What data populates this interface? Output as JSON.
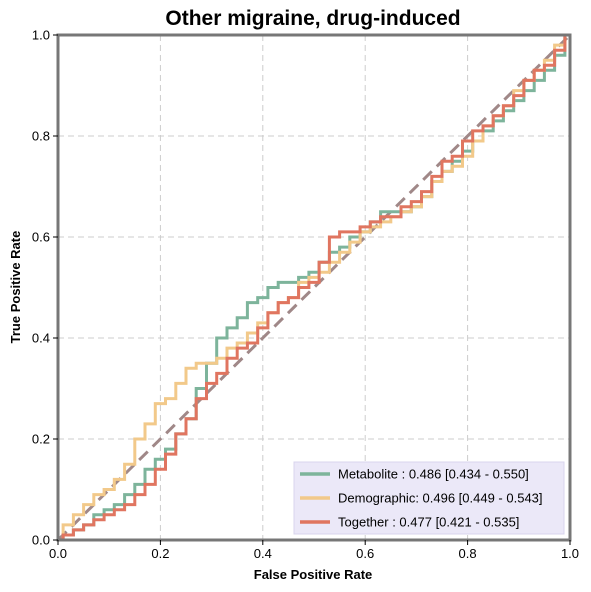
{
  "chart_data": {
    "type": "line",
    "title": "Other migraine, drug-induced",
    "xlabel": "False Positive Rate",
    "ylabel": "True Positive Rate",
    "xlim": [
      0,
      1
    ],
    "ylim": [
      0,
      1
    ],
    "xticks": [
      "0.0",
      "0.2",
      "0.4",
      "0.6",
      "0.8",
      "1.0"
    ],
    "yticks": [
      "0.0",
      "0.2",
      "0.4",
      "0.6",
      "0.8",
      "1.0"
    ],
    "grid": true,
    "legend_position": "bottom-right",
    "diagonal": {
      "x": [
        0,
        1
      ],
      "y": [
        0,
        1
      ],
      "color": "#a08888",
      "style": "dashed"
    },
    "series": [
      {
        "name": "Metabolite",
        "legend_label": "Metabolite     : 0.486 [0.434 - 0.550]",
        "color": "#7db49b",
        "x": [
          0,
          0.02,
          0.04,
          0.06,
          0.08,
          0.1,
          0.12,
          0.14,
          0.16,
          0.18,
          0.2,
          0.22,
          0.24,
          0.26,
          0.28,
          0.3,
          0.32,
          0.34,
          0.36,
          0.38,
          0.4,
          0.42,
          0.44,
          0.46,
          0.48,
          0.5,
          0.52,
          0.54,
          0.56,
          0.58,
          0.6,
          0.62,
          0.64,
          0.66,
          0.68,
          0.7,
          0.72,
          0.74,
          0.76,
          0.78,
          0.8,
          0.82,
          0.84,
          0.86,
          0.88,
          0.9,
          0.92,
          0.94,
          0.96,
          0.98,
          1.0
        ],
        "y": [
          0,
          0.01,
          0.02,
          0.03,
          0.05,
          0.06,
          0.07,
          0.09,
          0.11,
          0.14,
          0.16,
          0.18,
          0.21,
          0.24,
          0.3,
          0.35,
          0.4,
          0.42,
          0.44,
          0.47,
          0.48,
          0.5,
          0.51,
          0.51,
          0.52,
          0.53,
          0.55,
          0.57,
          0.58,
          0.6,
          0.61,
          0.63,
          0.65,
          0.65,
          0.65,
          0.66,
          0.68,
          0.71,
          0.73,
          0.75,
          0.77,
          0.79,
          0.81,
          0.83,
          0.85,
          0.87,
          0.89,
          0.91,
          0.93,
          0.96,
          1.0
        ]
      },
      {
        "name": "Demographic",
        "legend_label": "Demographic: 0.496 [0.449 - 0.543]",
        "color": "#f2c98a",
        "x": [
          0,
          0.02,
          0.04,
          0.06,
          0.08,
          0.1,
          0.12,
          0.14,
          0.16,
          0.18,
          0.2,
          0.22,
          0.24,
          0.26,
          0.28,
          0.3,
          0.32,
          0.34,
          0.36,
          0.38,
          0.4,
          0.42,
          0.44,
          0.46,
          0.48,
          0.5,
          0.52,
          0.54,
          0.56,
          0.58,
          0.6,
          0.62,
          0.64,
          0.66,
          0.68,
          0.7,
          0.72,
          0.74,
          0.76,
          0.78,
          0.8,
          0.82,
          0.84,
          0.86,
          0.88,
          0.9,
          0.92,
          0.94,
          0.96,
          0.98,
          1.0
        ],
        "y": [
          0,
          0.03,
          0.05,
          0.07,
          0.09,
          0.1,
          0.12,
          0.15,
          0.2,
          0.23,
          0.27,
          0.28,
          0.31,
          0.34,
          0.35,
          0.35,
          0.36,
          0.38,
          0.39,
          0.41,
          0.43,
          0.45,
          0.47,
          0.48,
          0.51,
          0.52,
          0.53,
          0.55,
          0.57,
          0.59,
          0.61,
          0.62,
          0.63,
          0.64,
          0.65,
          0.66,
          0.68,
          0.71,
          0.73,
          0.74,
          0.76,
          0.79,
          0.82,
          0.84,
          0.86,
          0.89,
          0.91,
          0.93,
          0.95,
          0.98,
          1.0
        ]
      },
      {
        "name": "Together",
        "legend_label": "Together       : 0.477 [0.421 - 0.535]",
        "color": "#e07560",
        "x": [
          0,
          0.02,
          0.04,
          0.06,
          0.08,
          0.1,
          0.12,
          0.14,
          0.16,
          0.18,
          0.2,
          0.22,
          0.24,
          0.26,
          0.28,
          0.3,
          0.32,
          0.34,
          0.36,
          0.38,
          0.4,
          0.42,
          0.44,
          0.46,
          0.48,
          0.5,
          0.52,
          0.54,
          0.56,
          0.58,
          0.6,
          0.62,
          0.64,
          0.66,
          0.68,
          0.7,
          0.72,
          0.74,
          0.76,
          0.78,
          0.8,
          0.82,
          0.84,
          0.86,
          0.88,
          0.9,
          0.92,
          0.94,
          0.96,
          0.98,
          1.0
        ],
        "y": [
          0,
          0.01,
          0.02,
          0.03,
          0.04,
          0.05,
          0.06,
          0.07,
          0.09,
          0.11,
          0.14,
          0.17,
          0.21,
          0.24,
          0.28,
          0.31,
          0.33,
          0.36,
          0.38,
          0.39,
          0.42,
          0.45,
          0.47,
          0.48,
          0.5,
          0.51,
          0.55,
          0.6,
          0.61,
          0.61,
          0.62,
          0.63,
          0.64,
          0.64,
          0.66,
          0.67,
          0.69,
          0.72,
          0.75,
          0.76,
          0.79,
          0.81,
          0.82,
          0.84,
          0.86,
          0.88,
          0.91,
          0.93,
          0.94,
          0.97,
          1.0
        ]
      }
    ]
  }
}
